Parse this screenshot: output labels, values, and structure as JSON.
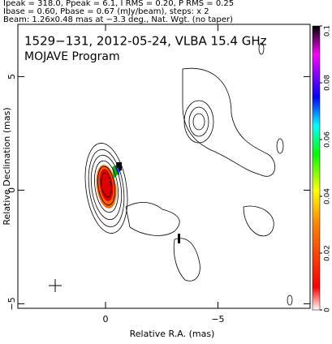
{
  "chart_data": {
    "type": "contour",
    "header": [
      "Ipeak = 318.0, Ppeak = 6.1, I RMS = 0.20, P RMS = 0.25",
      "Ibase = 0.60, Pbase = 0.67 (mJy/beam), steps: x 2",
      "Beam: 1.26x0.48 mas at −3.3 deg., Nat. Wgt. (no taper)"
    ],
    "title": "1529−131, 2012-05-24, VLBA 15.4 GHz",
    "subtitle": "MOJAVE Program",
    "xlabel": "Relative R.A. (mas)",
    "ylabel": "Relative Declination (mas)",
    "xlim": [
      3.9,
      -9.1
    ],
    "xticks": [
      0,
      {
        "value": -5,
        "label": "−5"
      }
    ],
    "ylim": [
      -5.2,
      7.3
    ],
    "yticks": [
      {
        "value": -5,
        "label": "−5"
      },
      0,
      5
    ],
    "colorbar": {
      "lim": [
        0,
        0.1
      ],
      "ticks": [
        0,
        0.02,
        0.04,
        0.06,
        0.08,
        0.1
      ]
    }
  }
}
